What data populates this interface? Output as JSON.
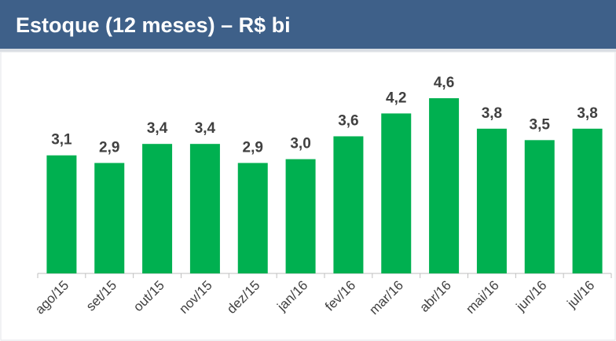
{
  "chart_data": {
    "type": "bar",
    "title": "Estoque (12 meses) – R$ bi",
    "categories": [
      "ago/15",
      "set/15",
      "out/15",
      "nov/15",
      "dez/15",
      "jan/16",
      "fev/16",
      "mar/16",
      "abr/16",
      "mai/16",
      "jun/16",
      "jul/16"
    ],
    "values": [
      3.1,
      2.9,
      3.4,
      3.4,
      2.9,
      3.0,
      3.6,
      4.2,
      4.6,
      3.8,
      3.5,
      3.8
    ],
    "value_labels": [
      "3,1",
      "2,9",
      "3,4",
      "3,4",
      "2,9",
      "3,0",
      "3,6",
      "4,2",
      "4,6",
      "3,8",
      "3,5",
      "3,8"
    ],
    "color": "#00b050"
  }
}
